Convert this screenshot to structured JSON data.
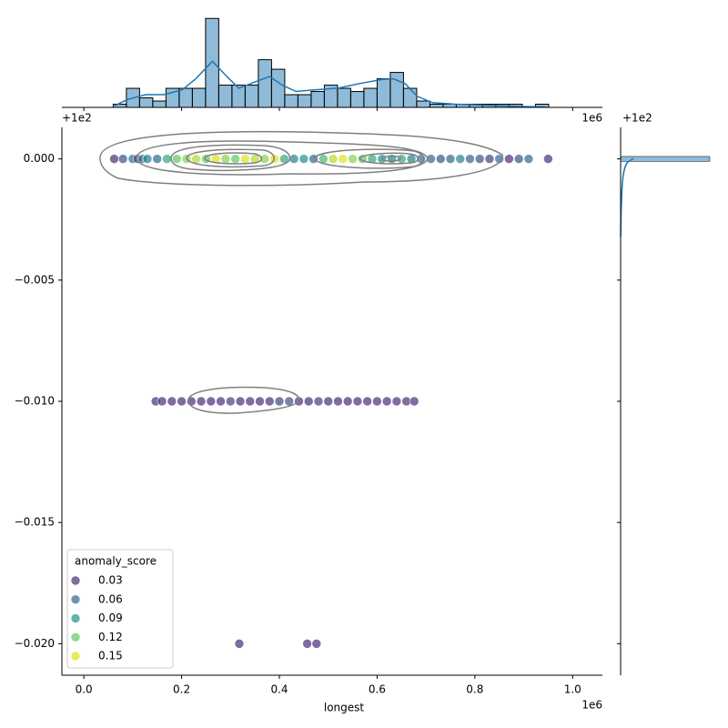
{
  "chart_data": {
    "type": "scatter",
    "xlabel": "longest",
    "x_offset": "1e6",
    "y_offset": "+1e2",
    "xlim": [
      -0.045,
      1.061
    ],
    "ylim": [
      -0.0213,
      0.0013
    ],
    "xticks": [
      {
        "value": 0,
        "label": "0.0"
      },
      {
        "value": 0.2,
        "label": "0.2"
      },
      {
        "value": 0.4,
        "label": "0.4"
      },
      {
        "value": 0.6,
        "label": "0.6"
      },
      {
        "value": 0.8,
        "label": "0.8"
      },
      {
        "value": 1,
        "label": "1.0"
      }
    ],
    "yticks": [
      {
        "value": 0,
        "label": "0.000"
      },
      {
        "value": -0.005,
        "label": "−0.005"
      },
      {
        "value": -0.01,
        "label": "−0.010"
      },
      {
        "value": -0.015,
        "label": "−0.015"
      },
      {
        "value": -0.02,
        "label": "−0.020"
      }
    ],
    "x": [
      0.062,
      0.08,
      0.1,
      0.11,
      0.12,
      0.13,
      0.15,
      0.17,
      0.19,
      0.21,
      0.23,
      0.25,
      0.27,
      0.29,
      0.31,
      0.33,
      0.35,
      0.37,
      0.39,
      0.41,
      0.43,
      0.45,
      0.47,
      0.49,
      0.51,
      0.53,
      0.55,
      0.57,
      0.59,
      0.61,
      0.63,
      0.65,
      0.67,
      0.69,
      0.71,
      0.73,
      0.75,
      0.77,
      0.79,
      0.81,
      0.83,
      0.85,
      0.87,
      0.89,
      0.91,
      0.95,
      0.147,
      0.16,
      0.18,
      0.2,
      0.22,
      0.24,
      0.26,
      0.28,
      0.3,
      0.32,
      0.34,
      0.36,
      0.38,
      0.4,
      0.42,
      0.44,
      0.46,
      0.48,
      0.5,
      0.52,
      0.54,
      0.56,
      0.58,
      0.6,
      0.62,
      0.64,
      0.66,
      0.676,
      0.318,
      0.457,
      0.476
    ],
    "y": [
      0,
      0,
      0,
      0,
      0,
      0,
      0,
      0,
      0,
      0,
      0,
      0,
      0,
      0,
      0,
      0,
      0,
      0,
      0,
      0,
      0,
      0,
      0,
      0,
      0,
      0,
      0,
      0,
      0,
      0,
      0,
      0,
      0,
      0,
      0,
      0,
      0,
      0,
      0,
      0,
      0,
      0,
      0,
      0,
      0,
      0,
      -0.01,
      -0.01,
      -0.01,
      -0.01,
      -0.01,
      -0.01,
      -0.01,
      -0.01,
      -0.01,
      -0.01,
      -0.01,
      -0.01,
      -0.01,
      -0.01,
      -0.01,
      -0.01,
      -0.01,
      -0.01,
      -0.01,
      -0.01,
      -0.01,
      -0.01,
      -0.01,
      -0.01,
      -0.01,
      -0.01,
      -0.01,
      -0.01,
      -0.02,
      -0.02,
      -0.02
    ],
    "hue": [
      0.03,
      0.05,
      0.06,
      0.04,
      0.07,
      0.08,
      0.06,
      0.1,
      0.12,
      0.13,
      0.14,
      0.12,
      0.15,
      0.13,
      0.12,
      0.15,
      0.14,
      0.13,
      0.16,
      0.1,
      0.08,
      0.09,
      0.06,
      0.11,
      0.14,
      0.15,
      0.13,
      0.12,
      0.1,
      0.09,
      0.08,
      0.1,
      0.08,
      0.07,
      0.06,
      0.05,
      0.06,
      0.08,
      0.06,
      0.05,
      0.04,
      0.06,
      0.03,
      0.05,
      0.06,
      0.03,
      0.02,
      0.03,
      0.02,
      0.03,
      0.01,
      0.02,
      0.03,
      0.02,
      0.04,
      0.03,
      0.02,
      0.03,
      0.01,
      0.04,
      0.05,
      0.02,
      0.03,
      0.04,
      0.02,
      0.03,
      0.01,
      0.03,
      0.02,
      0.01,
      0.02,
      0.01,
      0.01,
      0.01,
      0.03,
      0.02,
      0.03
    ],
    "legend": {
      "title": "anomaly_score",
      "position": "lower left",
      "items": [
        {
          "value": 0.03,
          "color": "#472d7b"
        },
        {
          "value": 0.06,
          "color": "#31688e"
        },
        {
          "value": 0.09,
          "color": "#21918c"
        },
        {
          "value": 0.12,
          "color": "#5ec962"
        },
        {
          "value": 0.15,
          "color": "#dde318"
        }
      ]
    },
    "marginal_x": {
      "type": "histogram",
      "color": "#1f77b4",
      "offset_left": "+1e2",
      "offset_right": "1e6",
      "ylim": [
        0,
        29.5
      ],
      "bins": [
        0.06,
        0.087,
        0.114,
        0.141,
        0.168,
        0.195,
        0.222,
        0.249,
        0.276,
        0.303,
        0.33,
        0.357,
        0.384,
        0.411,
        0.438,
        0.465,
        0.492,
        0.519,
        0.546,
        0.573,
        0.6,
        0.627,
        0.654,
        0.681,
        0.708,
        0.735,
        0.762,
        0.789,
        0.816,
        0.843,
        0.87,
        0.897,
        0.924,
        0.951
      ],
      "counts": [
        1,
        6,
        3,
        2,
        6,
        6,
        6,
        28,
        7,
        7,
        7,
        15,
        12,
        4,
        4,
        5,
        7,
        6,
        5,
        6,
        9,
        11,
        6,
        2,
        1,
        1,
        1,
        1,
        1,
        1,
        1,
        0,
        1
      ],
      "kde": {
        "x": [
          0.063,
          0.089,
          0.127,
          0.164,
          0.201,
          0.229,
          0.263,
          0.294,
          0.317,
          0.35,
          0.38,
          0.406,
          0.434,
          0.471,
          0.518,
          0.564,
          0.611,
          0.633,
          0.657,
          0.682,
          0.713,
          0.76,
          0.816,
          0.89,
          0.946
        ],
        "y": [
          0.5,
          2.5,
          4,
          4,
          5.5,
          9,
          14.5,
          9.5,
          6,
          8,
          9.7,
          7,
          5,
          5.5,
          6,
          7.5,
          8.8,
          9,
          7.5,
          3.5,
          1.5,
          1,
          0.7,
          0.3,
          0.1
        ]
      }
    },
    "marginal_y": {
      "type": "histogram",
      "color": "#1f77b4",
      "offset": "+1e2",
      "xlim": [
        0,
        60
      ],
      "bins": [
        -0.0001,
        0.0001
      ],
      "counts": [
        60
      ]
    }
  }
}
